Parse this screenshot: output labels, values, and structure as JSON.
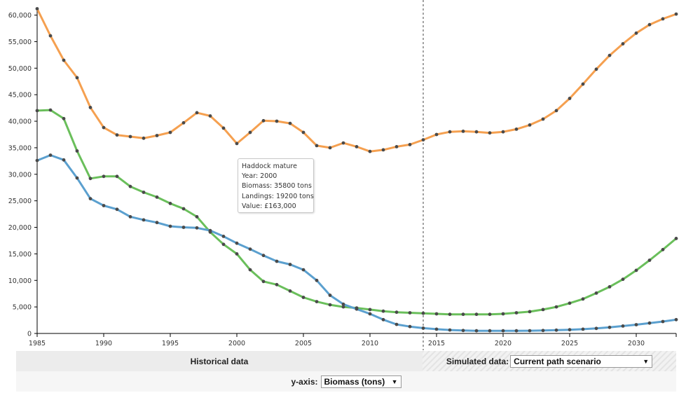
{
  "chart_data": {
    "type": "line",
    "xlim": [
      1985,
      2033
    ],
    "ylim": [
      0,
      61000
    ],
    "x_ticks": [
      1985,
      1990,
      1995,
      2000,
      2005,
      2010,
      2015,
      2020,
      2025,
      2030
    ],
    "y_ticks": [
      "0",
      "5,000",
      "10,000",
      "15,000",
      "20,000",
      "25,000",
      "30,000",
      "35,000",
      "40,000",
      "45,000",
      "50,000",
      "55,000",
      "60,000"
    ],
    "y_tick_values": [
      0,
      5000,
      10000,
      15000,
      20000,
      25000,
      30000,
      35000,
      40000,
      45000,
      50000,
      55000,
      60000
    ],
    "split_year": 2014,
    "x": [
      1985,
      1986,
      1987,
      1988,
      1989,
      1990,
      1991,
      1992,
      1993,
      1994,
      1995,
      1996,
      1997,
      1998,
      1999,
      2000,
      2001,
      2002,
      2003,
      2004,
      2005,
      2006,
      2007,
      2008,
      2009,
      2010,
      2011,
      2012,
      2013,
      2014,
      2015,
      2016,
      2017,
      2018,
      2019,
      2020,
      2021,
      2022,
      2023,
      2024,
      2025,
      2026,
      2027,
      2028,
      2029,
      2030,
      2031,
      2032,
      2033
    ],
    "series": [
      {
        "color": "#f5a050",
        "values": [
          61200,
          56100,
          51500,
          48200,
          42600,
          38800,
          37400,
          37100,
          36800,
          37300,
          37900,
          39700,
          41600,
          41000,
          38700,
          35800,
          37900,
          40100,
          40000,
          39600,
          37900,
          35400,
          35000,
          35900,
          35200,
          34300,
          34600,
          35200,
          35600,
          36500,
          37500,
          38000,
          38100,
          38000,
          37800,
          38000,
          38500,
          39300,
          40400,
          42000,
          44300,
          47000,
          49800,
          52400,
          54600,
          56600,
          58200,
          59300,
          60200
        ]
      },
      {
        "color": "#6abf5b",
        "values": [
          42000,
          42100,
          40500,
          34400,
          29200,
          29600,
          29600,
          27700,
          26600,
          25700,
          24500,
          23500,
          22000,
          19100,
          16800,
          15000,
          12000,
          9800,
          9200,
          8000,
          6800,
          6000,
          5400,
          5000,
          4800,
          4500,
          4200,
          4000,
          3900,
          3800,
          3700,
          3600,
          3600,
          3600,
          3600,
          3700,
          3900,
          4100,
          4500,
          5000,
          5700,
          6500,
          7600,
          8800,
          10200,
          11900,
          13800,
          15800,
          17900
        ]
      },
      {
        "color": "#5ba0cf",
        "values": [
          32600,
          33600,
          32700,
          29300,
          25400,
          24100,
          23400,
          22000,
          21400,
          20900,
          20200,
          20000,
          19900,
          19400,
          18300,
          17000,
          15900,
          14700,
          13600,
          13000,
          12000,
          10000,
          7200,
          5500,
          4600,
          3700,
          2600,
          1700,
          1300,
          1000,
          800,
          650,
          550,
          500,
          500,
          500,
          500,
          520,
          560,
          620,
          700,
          800,
          950,
          1150,
          1400,
          1650,
          1950,
          2250,
          2600
        ]
      }
    ]
  },
  "tooltip": {
    "line1": "Haddock mature",
    "line2": "Year: 2000",
    "line3": "Biomass: 35800 tons",
    "line4": "Landings: 19200 tons",
    "line5": "Value: £163,000"
  },
  "controls": {
    "historical_label": "Historical data",
    "simulated_label": "Simulated data:",
    "scenario_value": "Current path scenario",
    "yaxis_label": "y-axis:",
    "yaxis_value": "Biomass (tons)"
  }
}
